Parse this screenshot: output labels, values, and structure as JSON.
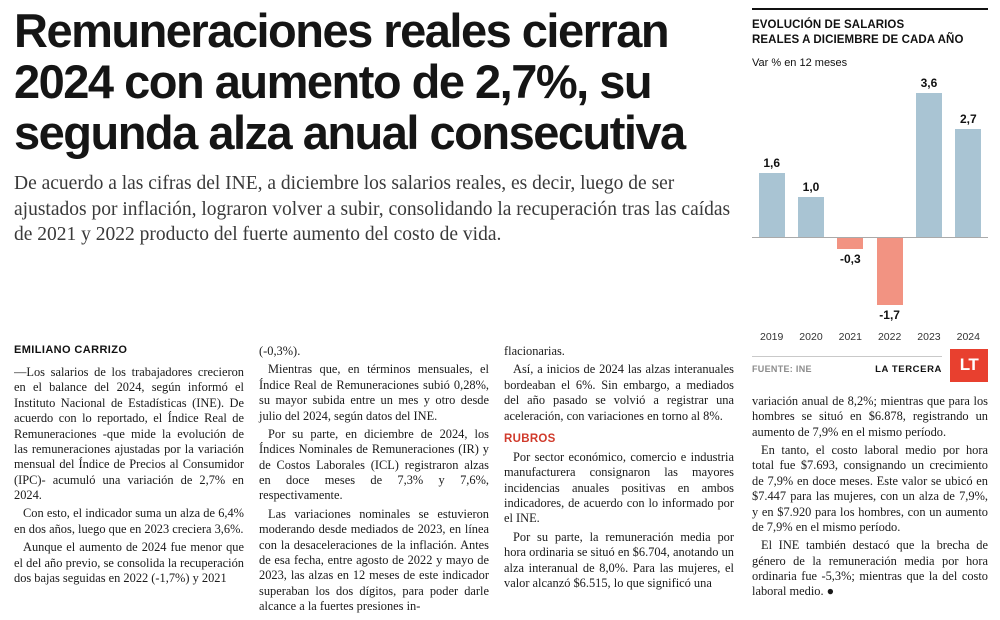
{
  "headline": "Remuneraciones reales cierran 2024 con aumento de 2,7%, su segunda alza anual consecutiva",
  "deck": "De acuerdo a las cifras del INE, a diciembre los salarios reales, es decir, luego de ser ajustados por inflación, lograron volver a subir, consolidando la recuperación tras las caídas de 2021 y 2022 producto del fuerte aumento del costo de vida.",
  "byline": "EMILIANO CARRIZO",
  "article": {
    "col1": [
      "—Los salarios de los trabajadores crecieron en el balance del 2024, según informó el Instituto Nacional de Estadísticas (INE). De acuerdo con lo reportado, el Índice Real de Remuneraciones -que mide la evolución de las remuneraciones ajustadas por la variación mensual del Índice de Precios al Consumidor (IPC)- acumuló una variación de 2,7% en 2024.",
      "Con esto, el indicador suma un alza de 6,4% en dos años, luego que en 2023 creciera 3,6%.",
      "Aunque el aumento de 2024 fue menor que el del año previo, se consolida la recuperación dos bajas seguidas en 2022 (-1,7%) y 2021"
    ],
    "col2": [
      "(-0,3%).",
      "Mientras que, en términos mensuales, el Índice Real de Remuneraciones subió 0,28%, su mayor subida entre un mes y otro desde julio del 2024, según datos del INE.",
      "Por su parte, en diciembre de 2024, los Índices Nominales de Remuneraciones (IR) y de Costos Laborales (ICL) registraron alzas en doce meses de 7,3% y 7,6%, respectivamente.",
      "Las variaciones nominales se estuvieron moderando desde mediados de 2023, en línea con la desaceleraciones de la inflación. Antes de esa fecha, entre agosto de 2022 y mayo de 2023, las alzas en 12 meses de este indicador superaban los dos dígitos, para poder darle alcance a la fuertes presiones in-"
    ],
    "col3_before": [
      "flacionarias.",
      "Así, a inicios de 2024 las alzas interanuales bordeaban el 6%. Sin embargo, a mediados del año pasado se volvió a registrar una aceleración, con variaciones en torno al 8%."
    ],
    "rubros_heading": "RUBROS",
    "col3_after": [
      "Por sector económico, comercio e industria manufacturera consignaron las mayores incidencias anuales positivas en ambos indicadores, de acuerdo con lo informado por el INE.",
      "Por su parte, la remuneración media por hora ordinaria se situó en $6.704, anotando un alza interanual de 8,0%. Para las mujeres, el valor alcanzó $6.515, lo que significó una"
    ],
    "col4": [
      "variación anual de 8,2%; mientras que para los hombres se situó en $6.878, registrando un aumento de 7,9% en el mismo período.",
      "En tanto, el costo laboral medio por hora total fue $7.693, consignando un crecimiento de 7,9% en doce meses. Este valor se ubicó en $7.447 para las mujeres, con un alza de 7,9%, y en $7.920 para los hombres, con un aumento de 7,9% en el mismo período.",
      "El INE también destacó que la brecha de género de la remuneración media por hora ordinaria fue -5,3%; mientras que la del costo laboral medio. ●"
    ]
  },
  "chart": {
    "title_line1": "EVOLUCIÓN DE SALARIOS",
    "title_line2": "REALES A DICIEMBRE DE CADA AÑO",
    "subtitle": "Var % en 12 meses",
    "source": "FUENTE: INE",
    "brand": "LA TERCERA",
    "logo_text": "LT",
    "logo_color": "#e8402f",
    "rubros_color": "#d03a2b"
  },
  "chart_data": {
    "type": "bar",
    "title": "EVOLUCIÓN DE SALARIOS REALES A DICIEMBRE DE CADA AÑO",
    "ylabel": "Var % en 12 meses",
    "categories": [
      "2019",
      "2020",
      "2021",
      "2022",
      "2023",
      "2024"
    ],
    "values": [
      1.6,
      1.0,
      -0.3,
      -1.7,
      3.6,
      2.7
    ],
    "labels": [
      "1,6",
      "1,0",
      "-0,3",
      "-1,7",
      "3,6",
      "2,7"
    ],
    "ylim": [
      -2.2,
      4.2
    ],
    "grid": false,
    "legend": "none",
    "positive_color": "#a9c4d3",
    "negative_color": "#f29382",
    "axis_line_color": "#aaaaaa"
  }
}
